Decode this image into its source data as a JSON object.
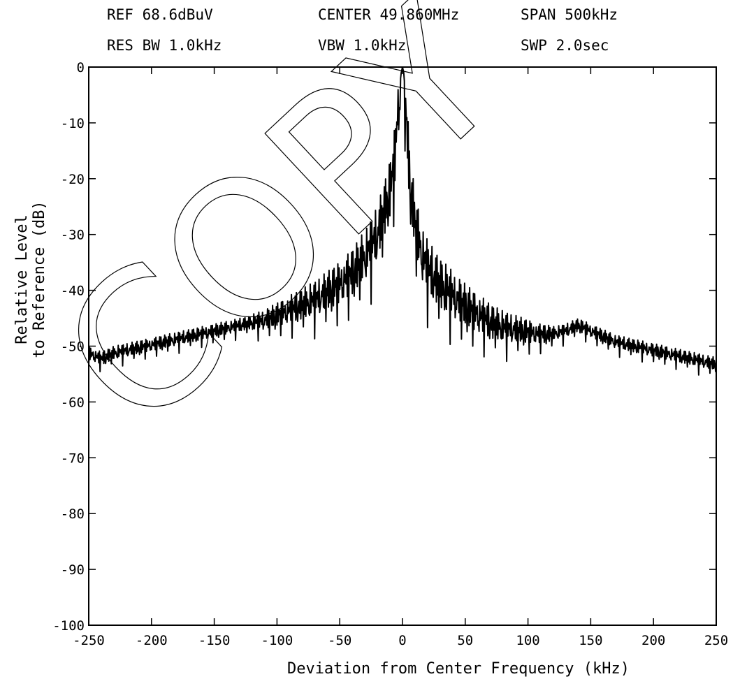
{
  "header": {
    "ref": "REF 68.6dBuV",
    "center": "CENTER  49.860MHz",
    "span": "SPAN 500kHz",
    "res_bw": "RES BW   1.0kHz",
    "vbw": "VBW   1.0kHz",
    "swp": "SWP 2.0sec"
  },
  "watermark": "COPY",
  "chart_data": {
    "type": "line",
    "title": "",
    "xlabel": "Deviation from Center Frequency (kHz)",
    "ylabel_line1": "Relative Level",
    "ylabel_line2": "to Reference (dB)",
    "xlim": [
      -250,
      250
    ],
    "ylim": [
      -100,
      0
    ],
    "xticks": [
      -250,
      -200,
      -150,
      -100,
      -50,
      0,
      50,
      100,
      150,
      200,
      250
    ],
    "yticks": [
      0,
      -10,
      -20,
      -30,
      -40,
      -50,
      -60,
      -70,
      -80,
      -90,
      -100
    ],
    "grid": false,
    "series": [
      {
        "name": "",
        "x": [
          -250,
          -240,
          -230,
          -220,
          -210,
          -200,
          -190,
          -180,
          -170,
          -160,
          -150,
          -140,
          -130,
          -120,
          -110,
          -100,
          -90,
          -80,
          -70,
          -60,
          -50,
          -40,
          -30,
          -20,
          -15,
          -10,
          -6,
          -4,
          -2,
          -1,
          0,
          1,
          2,
          4,
          6,
          10,
          15,
          20,
          30,
          40,
          50,
          60,
          70,
          80,
          90,
          100,
          110,
          120,
          130,
          140,
          150,
          160,
          170,
          180,
          190,
          200,
          210,
          220,
          230,
          240,
          250
        ],
        "y": [
          -51,
          -52,
          -51,
          -50.5,
          -50,
          -49.5,
          -49,
          -48.5,
          -48,
          -47.5,
          -47,
          -46.5,
          -46,
          -45.5,
          -45,
          -44,
          -43,
          -42,
          -41,
          -39.5,
          -38,
          -36,
          -33,
          -29,
          -25,
          -21,
          -15,
          -8,
          -3,
          -1,
          0,
          -1,
          -4,
          -12,
          -20,
          -27,
          -32,
          -35,
          -38,
          -40,
          -42,
          -43.5,
          -45,
          -46,
          -46.5,
          -47,
          -47.5,
          -47.5,
          -47,
          -46,
          -47,
          -48,
          -49,
          -49.5,
          -50,
          -50.5,
          -51,
          -51.5,
          -52,
          -52.5,
          -53
        ]
      }
    ]
  }
}
